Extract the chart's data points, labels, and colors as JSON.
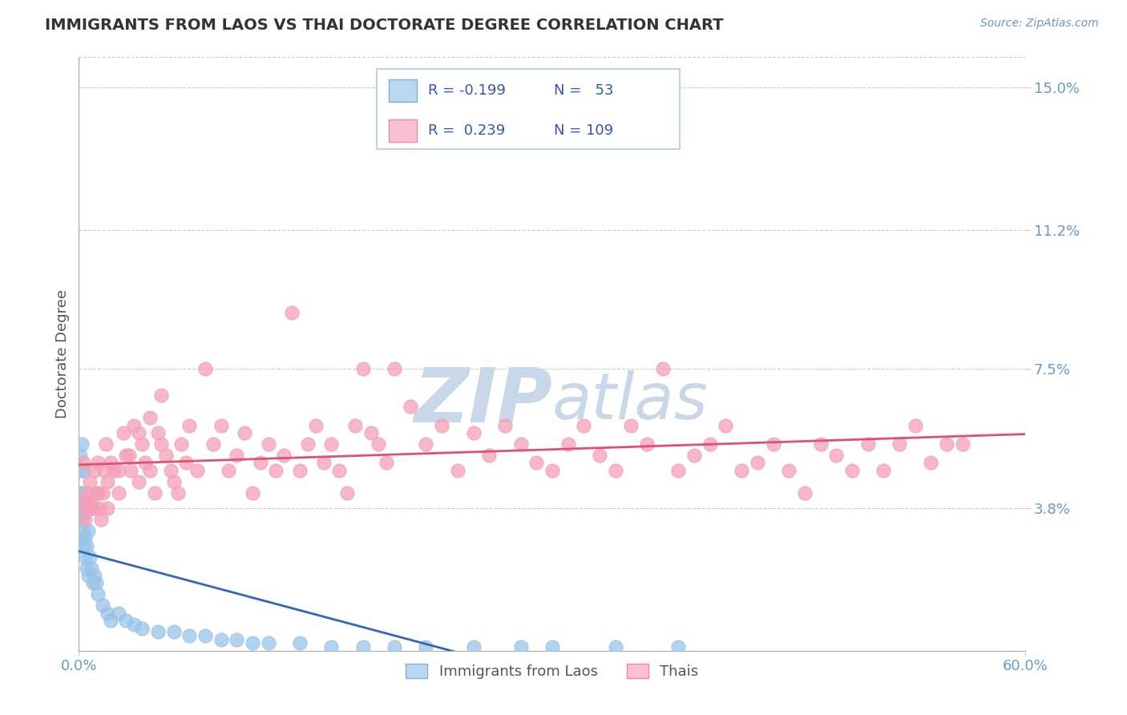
{
  "title": "IMMIGRANTS FROM LAOS VS THAI DOCTORATE DEGREE CORRELATION CHART",
  "source": "Source: ZipAtlas.com",
  "ylabel": "Doctorate Degree",
  "xlim": [
    0.0,
    0.6
  ],
  "ylim": [
    0.0,
    0.158
  ],
  "xticks": [
    0.0,
    0.6
  ],
  "xticklabels": [
    "0.0%",
    "60.0%"
  ],
  "ytick_values": [
    0.038,
    0.075,
    0.112,
    0.15
  ],
  "ytick_labels": [
    "3.8%",
    "7.5%",
    "11.2%",
    "15.0%"
  ],
  "grid_color": "#cccccc",
  "background_color": "#ffffff",
  "watermark": "ZIPAtlas",
  "watermark_color": "#c8d8e8",
  "series": [
    {
      "label": "Immigrants from Laos",
      "R": -0.199,
      "N": 53,
      "color": "#99c4e8",
      "edge_color": "#99c4e8",
      "line_color": "#3366bb",
      "x": [
        0.001,
        0.001,
        0.001,
        0.001,
        0.001,
        0.002,
        0.002,
        0.002,
        0.002,
        0.002,
        0.003,
        0.003,
        0.003,
        0.003,
        0.004,
        0.004,
        0.004,
        0.005,
        0.005,
        0.005,
        0.006,
        0.006,
        0.007,
        0.008,
        0.009,
        0.01,
        0.011,
        0.012,
        0.015,
        0.018,
        0.02,
        0.025,
        0.03,
        0.035,
        0.04,
        0.05,
        0.06,
        0.07,
        0.08,
        0.09,
        0.1,
        0.11,
        0.12,
        0.14,
        0.16,
        0.18,
        0.2,
        0.22,
        0.25,
        0.28,
        0.3,
        0.34,
        0.38
      ],
      "y": [
        0.038,
        0.04,
        0.042,
        0.048,
        0.052,
        0.03,
        0.035,
        0.038,
        0.042,
        0.055,
        0.028,
        0.032,
        0.036,
        0.048,
        0.025,
        0.03,
        0.04,
        0.022,
        0.028,
        0.038,
        0.02,
        0.032,
        0.025,
        0.022,
        0.018,
        0.02,
        0.018,
        0.015,
        0.012,
        0.01,
        0.008,
        0.01,
        0.008,
        0.007,
        0.006,
        0.005,
        0.005,
        0.004,
        0.004,
        0.003,
        0.003,
        0.002,
        0.002,
        0.002,
        0.001,
        0.001,
        0.001,
        0.001,
        0.001,
        0.001,
        0.001,
        0.001,
        0.001
      ]
    },
    {
      "label": "Thais",
      "R": 0.239,
      "N": 109,
      "color": "#f4a0b8",
      "edge_color": "#f4a0b8",
      "line_color": "#e05070",
      "x": [
        0.002,
        0.003,
        0.004,
        0.005,
        0.006,
        0.007,
        0.008,
        0.009,
        0.01,
        0.011,
        0.012,
        0.013,
        0.014,
        0.015,
        0.016,
        0.017,
        0.018,
        0.02,
        0.022,
        0.025,
        0.028,
        0.03,
        0.033,
        0.035,
        0.038,
        0.04,
        0.042,
        0.045,
        0.048,
        0.05,
        0.052,
        0.055,
        0.058,
        0.06,
        0.063,
        0.065,
        0.068,
        0.07,
        0.075,
        0.08,
        0.085,
        0.09,
        0.095,
        0.1,
        0.105,
        0.11,
        0.115,
        0.12,
        0.125,
        0.13,
        0.135,
        0.14,
        0.145,
        0.15,
        0.155,
        0.16,
        0.165,
        0.17,
        0.175,
        0.18,
        0.185,
        0.19,
        0.195,
        0.2,
        0.21,
        0.22,
        0.23,
        0.24,
        0.25,
        0.26,
        0.27,
        0.28,
        0.29,
        0.3,
        0.31,
        0.32,
        0.33,
        0.34,
        0.35,
        0.36,
        0.37,
        0.38,
        0.39,
        0.4,
        0.41,
        0.42,
        0.43,
        0.44,
        0.45,
        0.46,
        0.47,
        0.48,
        0.49,
        0.5,
        0.51,
        0.52,
        0.53,
        0.54,
        0.55,
        0.56,
        0.005,
        0.008,
        0.012,
        0.018,
        0.025,
        0.032,
        0.038,
        0.045,
        0.052
      ],
      "y": [
        0.04,
        0.05,
        0.035,
        0.038,
        0.042,
        0.045,
        0.04,
        0.038,
        0.048,
        0.042,
        0.05,
        0.038,
        0.035,
        0.042,
        0.048,
        0.055,
        0.038,
        0.05,
        0.048,
        0.042,
        0.058,
        0.052,
        0.048,
        0.06,
        0.045,
        0.055,
        0.05,
        0.048,
        0.042,
        0.058,
        0.055,
        0.052,
        0.048,
        0.045,
        0.042,
        0.055,
        0.05,
        0.06,
        0.048,
        0.075,
        0.055,
        0.06,
        0.048,
        0.052,
        0.058,
        0.042,
        0.05,
        0.055,
        0.048,
        0.052,
        0.09,
        0.048,
        0.055,
        0.06,
        0.05,
        0.055,
        0.048,
        0.042,
        0.06,
        0.075,
        0.058,
        0.055,
        0.05,
        0.075,
        0.065,
        0.055,
        0.06,
        0.048,
        0.058,
        0.052,
        0.06,
        0.055,
        0.05,
        0.048,
        0.055,
        0.06,
        0.052,
        0.048,
        0.06,
        0.055,
        0.075,
        0.048,
        0.052,
        0.055,
        0.06,
        0.048,
        0.05,
        0.055,
        0.048,
        0.042,
        0.055,
        0.052,
        0.048,
        0.055,
        0.048,
        0.055,
        0.06,
        0.05,
        0.055,
        0.055,
        0.04,
        0.038,
        0.042,
        0.045,
        0.048,
        0.052,
        0.058,
        0.062,
        0.068
      ]
    }
  ],
  "legend_box_colors": [
    "#b8d8f0",
    "#f8c0d0"
  ],
  "legend_text_color": "#3355bb",
  "title_color": "#333333",
  "axis_label_color": "#555555",
  "tick_label_color": "#6699cc",
  "source_color": "#6699cc"
}
